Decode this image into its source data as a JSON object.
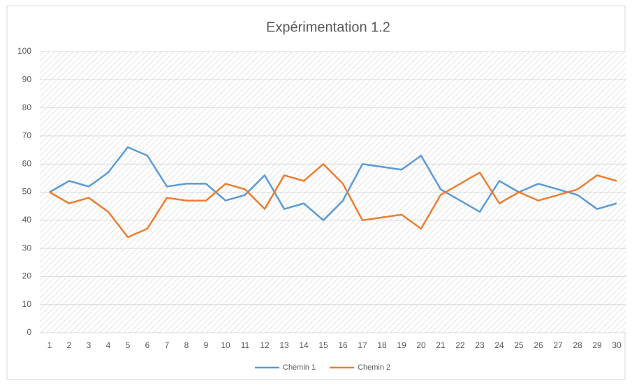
{
  "chart_data": {
    "type": "line",
    "title": "Expérimentation 1.2",
    "categories": [
      "1",
      "2",
      "3",
      "4",
      "5",
      "6",
      "7",
      "8",
      "9",
      "10",
      "11",
      "12",
      "13",
      "14",
      "15",
      "16",
      "17",
      "18",
      "19",
      "20",
      "21",
      "22",
      "23",
      "24",
      "25",
      "26",
      "27",
      "28",
      "29",
      "30"
    ],
    "series": [
      {
        "name": "Chemin 1",
        "color": "#5b9bd5",
        "values": [
          50,
          54,
          52,
          57,
          66,
          63,
          52,
          53,
          53,
          47,
          49,
          56,
          44,
          46,
          40,
          47,
          60,
          59,
          58,
          63,
          51,
          47,
          43,
          54,
          50,
          53,
          51,
          49,
          44,
          46
        ]
      },
      {
        "name": "Chemin 2",
        "color": "#ed7d31",
        "values": [
          50,
          46,
          48,
          43,
          34,
          37,
          48,
          47,
          47,
          53,
          51,
          44,
          56,
          54,
          60,
          53,
          40,
          41,
          42,
          37,
          49,
          53,
          57,
          46,
          50,
          47,
          49,
          51,
          56,
          54
        ]
      }
    ],
    "ylim": [
      0,
      100
    ],
    "yticks": [
      0,
      10,
      20,
      30,
      40,
      50,
      60,
      70,
      80,
      90,
      100
    ],
    "grid": true,
    "legend": "bottom"
  }
}
